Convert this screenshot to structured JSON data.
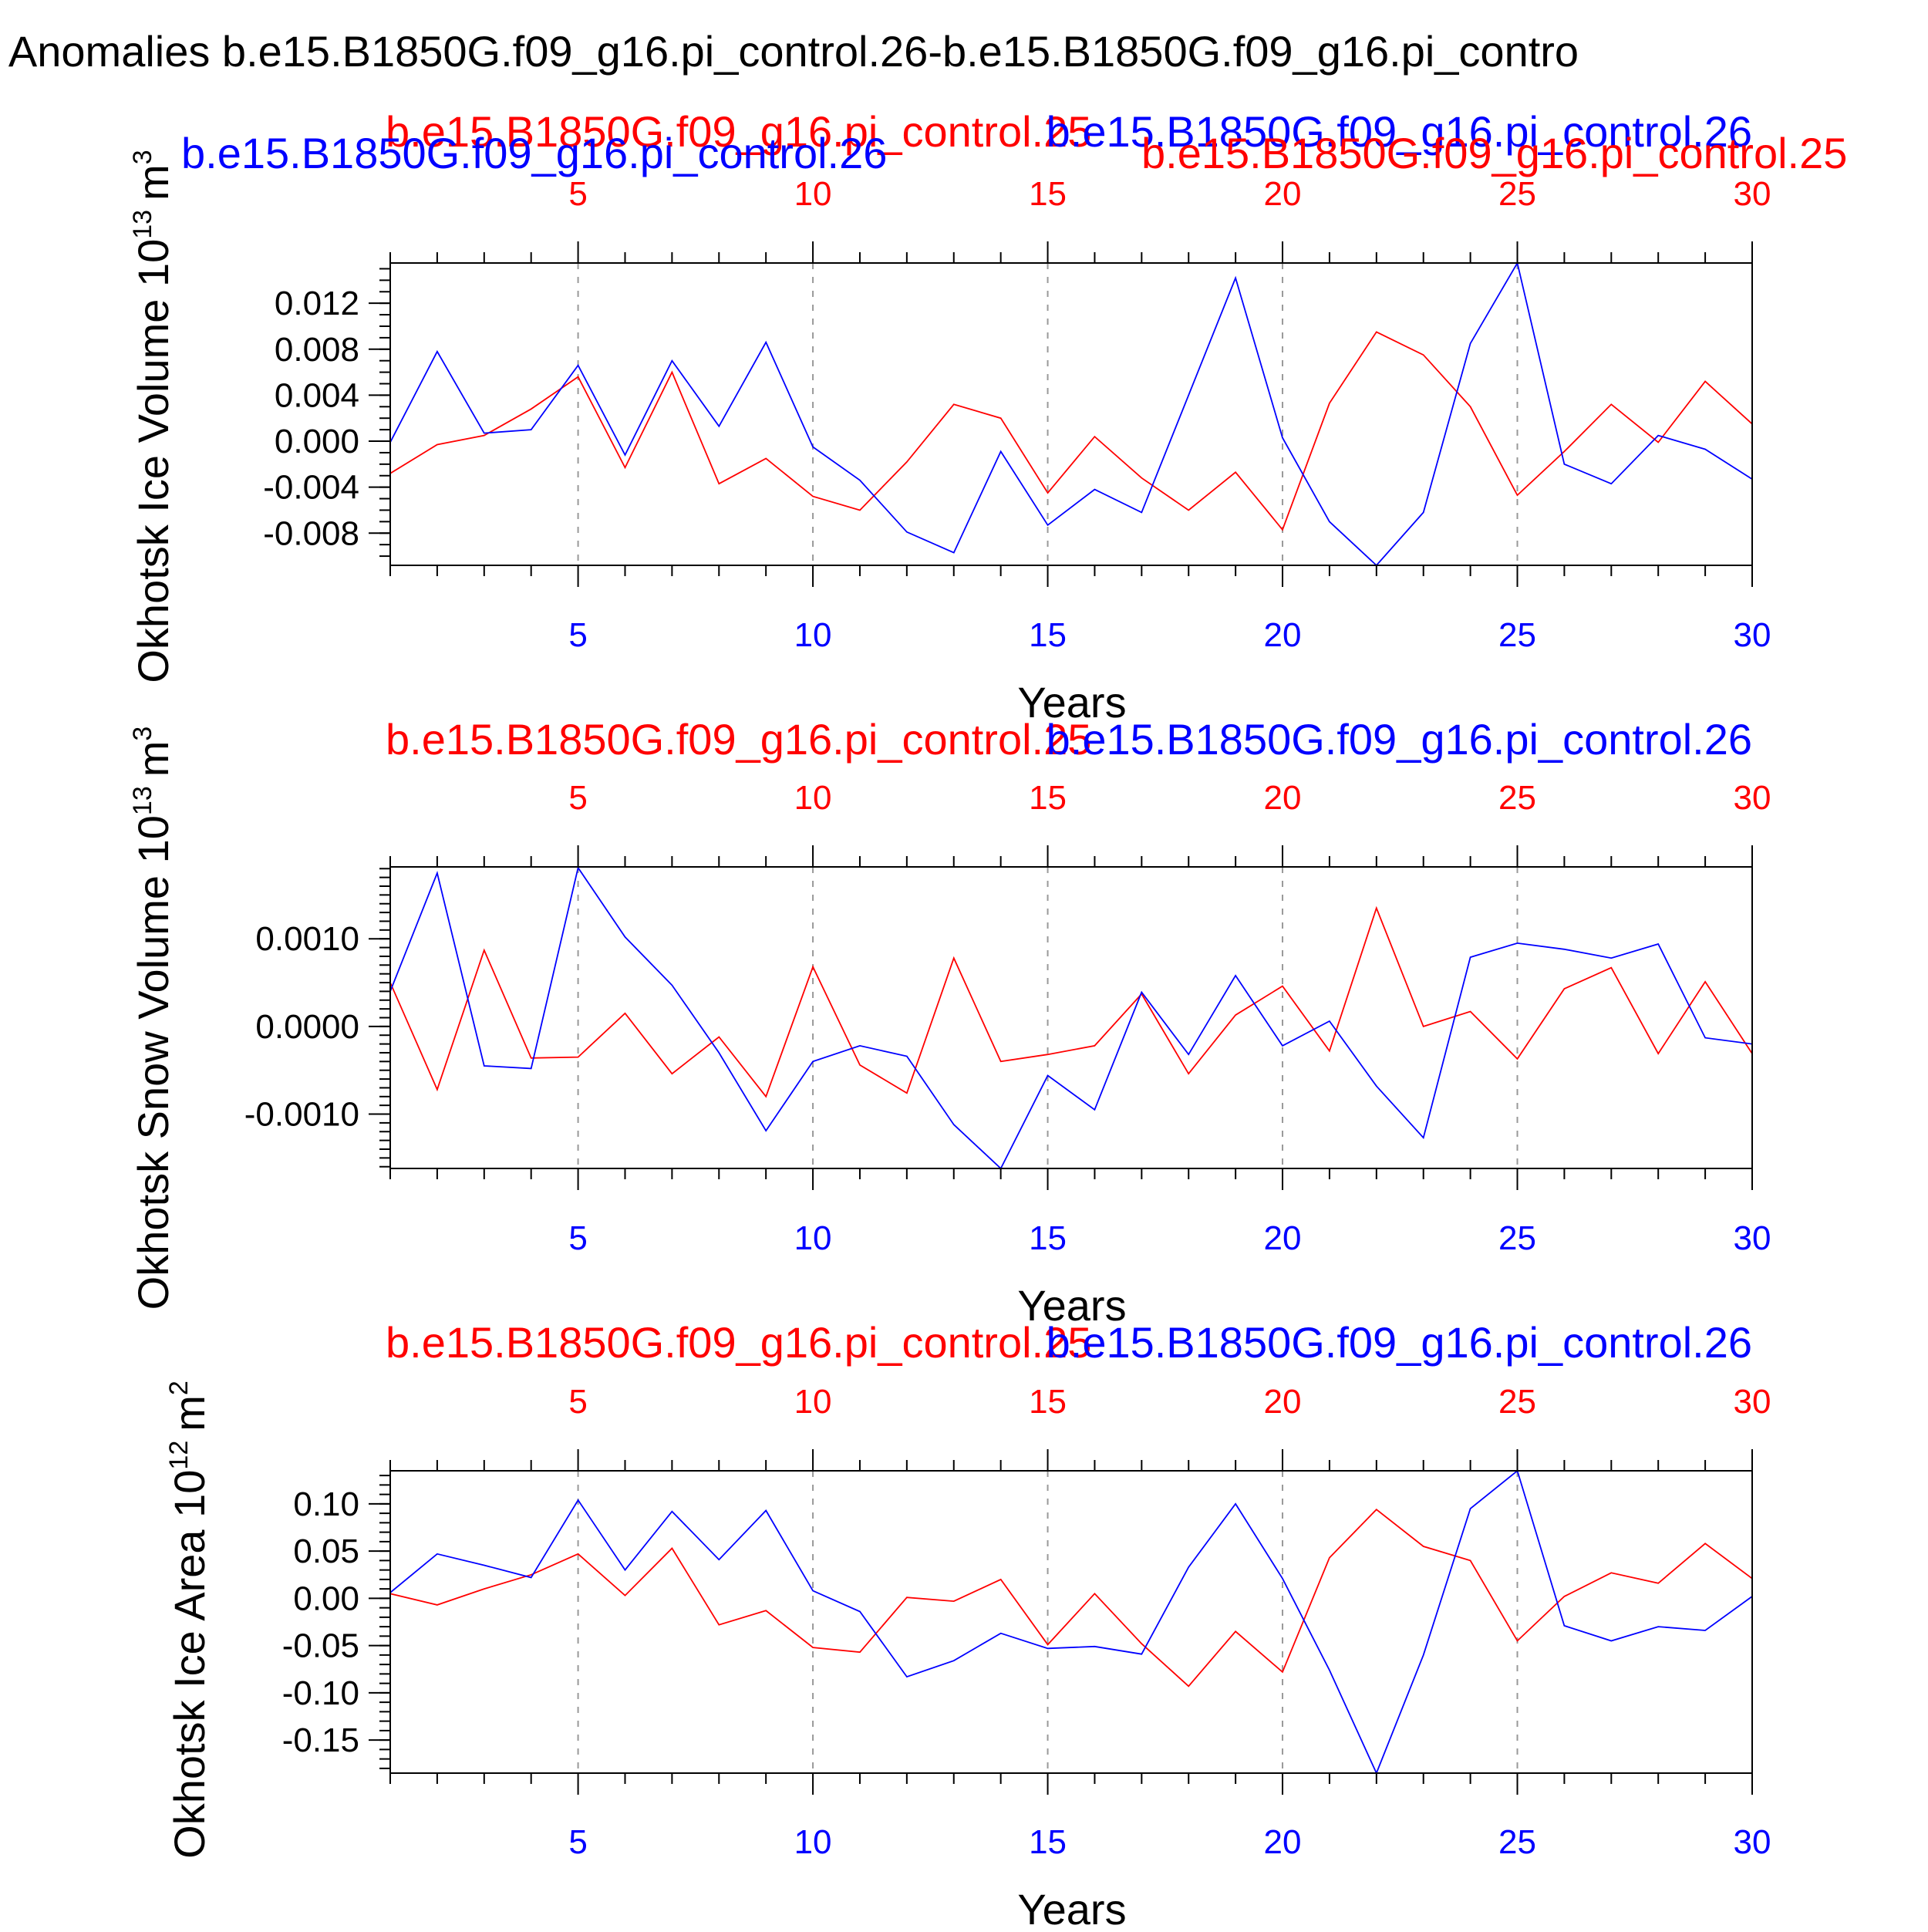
{
  "figure_title": "l Anomalies b.e15.B1850G.f09_g16.pi_control.26-b.e15.B1850G.f09_g16.pi_contro",
  "colors": {
    "red_series": "#ff0000",
    "blue_series": "#0000ff",
    "axis": "#000000",
    "grid": "#999999"
  },
  "chart_data": [
    {
      "type": "line",
      "ylabel": "Okhotsk Ice Volume",
      "yunit_base": "10",
      "yunit_exp": "13",
      "yunit_tail": "m",
      "yunit_tail_exp": "3",
      "xlabel": "Years",
      "xlim": [
        1,
        30
      ],
      "ylim": [
        -0.0108,
        0.0155
      ],
      "x_ticks": [
        5,
        10,
        15,
        20,
        25,
        30
      ],
      "x_tick_labels": [
        "5",
        "10",
        "15",
        "20",
        "25",
        "30"
      ],
      "y_ticks": [
        -0.008,
        -0.004,
        0.0,
        0.004,
        0.008,
        0.012
      ],
      "y_tick_labels": [
        "-0.008",
        "-0.004",
        "0.000",
        "0.004",
        "0.008",
        "0.012"
      ],
      "y_minor_step": 0.001,
      "top_labels": [
        "b.e15.B1850G.f09_g16.pi_control.25",
        "b.e15.B1850G.f09_g16.pi_control.26",
        "b.e15.B1850G.f09_g16.pi_control.26",
        "b.e15.B1850G.f09_g16.pi_control.25"
      ],
      "series": [
        {
          "name": "b.e15.B1850G.f09_g16.pi_control.25",
          "color": "#ff0000",
          "values": [
            -0.0028,
            -0.0003,
            0.0005,
            0.0028,
            0.0056,
            -0.0023,
            0.006,
            -0.0037,
            -0.0015,
            -0.0048,
            -0.006,
            -0.0018,
            0.0032,
            0.002,
            -0.0045,
            0.0004,
            -0.0032,
            -0.006,
            -0.0027,
            -0.0077,
            0.0033,
            0.0095,
            0.0075,
            0.003,
            -0.0047,
            -0.0009,
            0.0032,
            -0.0001,
            0.0052,
            0.0015
          ]
        },
        {
          "name": "b.e15.B1850G.f09_g16.pi_control.26",
          "color": "#0000ff",
          "values": [
            -0.0001,
            0.0078,
            0.0007,
            0.001,
            0.0066,
            -0.0012,
            0.007,
            0.0013,
            0.0086,
            -0.0005,
            -0.0034,
            -0.0079,
            -0.0097,
            -0.0009,
            -0.0073,
            -0.0042,
            -0.0062,
            0.004,
            0.0142,
            0.0003,
            -0.007,
            -0.0108,
            -0.0062,
            0.0085,
            0.0155,
            -0.002,
            -0.0037,
            0.0005,
            -0.0007,
            -0.0033
          ]
        }
      ]
    },
    {
      "type": "line",
      "ylabel": "Okhotsk Snow Volume",
      "yunit_base": "10",
      "yunit_exp": "13",
      "yunit_tail": "m",
      "yunit_tail_exp": "3",
      "xlabel": "Years",
      "xlim": [
        1,
        30
      ],
      "ylim": [
        -0.00162,
        0.00182
      ],
      "x_ticks": [
        5,
        10,
        15,
        20,
        25,
        30
      ],
      "x_tick_labels": [
        "5",
        "10",
        "15",
        "20",
        "25",
        "30"
      ],
      "y_ticks": [
        -0.001,
        0.0,
        0.001
      ],
      "y_tick_labels": [
        "-0.0010",
        "0.0000",
        "0.0010"
      ],
      "y_minor_step": 0.0001,
      "top_labels": [
        "b.e15.B1850G.f09_g16.pi_control.25",
        "b.e15.B1850G.f09_g16.pi_control.26"
      ],
      "series": [
        {
          "name": "b.e15.B1850G.f09_g16.pi_control.25",
          "color": "#ff0000",
          "values": [
            0.0005,
            -0.00072,
            0.00087,
            -0.00036,
            -0.00035,
            0.00015,
            -0.00054,
            -0.00012,
            -0.0008,
            0.00068,
            -0.00044,
            -0.00076,
            0.00078,
            -0.0004,
            -0.00032,
            -0.00022,
            0.00037,
            -0.00054,
            0.00013,
            0.00046,
            -0.00028,
            0.00135,
            0.0,
            0.00017,
            -0.00037,
            0.00043,
            0.00067,
            -0.00031,
            0.00051,
            -0.00031
          ]
        },
        {
          "name": "b.e15.B1850G.f09_g16.pi_control.26",
          "color": "#0000ff",
          "values": [
            0.0004,
            0.00175,
            -0.00045,
            -0.00048,
            0.00181,
            0.00102,
            0.00047,
            -0.0003,
            -0.00119,
            -0.0004,
            -0.00022,
            -0.00034,
            -0.00112,
            -0.00162,
            -0.00056,
            -0.00095,
            0.00039,
            -0.00032,
            0.00058,
            -0.00022,
            6e-05,
            -0.00068,
            -0.00127,
            0.00079,
            0.00095,
            0.00088,
            0.00078,
            0.00094,
            -0.00013,
            -0.0002
          ]
        }
      ]
    },
    {
      "type": "line",
      "ylabel": "Okhotsk Ice Area",
      "yunit_base": "10",
      "yunit_exp": "12",
      "yunit_tail": "m",
      "yunit_tail_exp": "2",
      "xlabel": "Years",
      "xlim": [
        1,
        30
      ],
      "ylim": [
        -0.185,
        0.135
      ],
      "x_ticks": [
        5,
        10,
        15,
        20,
        25,
        30
      ],
      "x_tick_labels": [
        "5",
        "10",
        "15",
        "20",
        "25",
        "30"
      ],
      "y_ticks": [
        -0.15,
        -0.1,
        -0.05,
        0.0,
        0.05,
        0.1
      ],
      "y_tick_labels": [
        "-0.15",
        "-0.10",
        "-0.05",
        "0.00",
        "0.05",
        "0.10"
      ],
      "y_minor_step": 0.01,
      "top_labels": [
        "b.e15.B1850G.f09_g16.pi_control.25",
        "b.e15.B1850G.f09_g16.pi_control.26"
      ],
      "series": [
        {
          "name": "b.e15.B1850G.f09_g16.pi_control.25",
          "color": "#ff0000",
          "values": [
            0.005,
            -0.007,
            0.01,
            0.025,
            0.047,
            0.003,
            0.053,
            -0.028,
            -0.013,
            -0.052,
            -0.057,
            0.001,
            -0.003,
            0.02,
            -0.049,
            0.005,
            -0.048,
            -0.093,
            -0.035,
            -0.078,
            0.043,
            0.094,
            0.055,
            0.04,
            -0.045,
            0.002,
            0.027,
            0.016,
            0.058,
            0.021
          ]
        },
        {
          "name": "b.e15.B1850G.f09_g16.pi_control.26",
          "color": "#0000ff",
          "values": [
            0.006,
            0.047,
            0.035,
            0.022,
            0.104,
            0.03,
            0.092,
            0.041,
            0.093,
            0.008,
            -0.014,
            -0.083,
            -0.066,
            -0.037,
            -0.053,
            -0.051,
            -0.059,
            0.033,
            0.1,
            0.021,
            -0.076,
            -0.185,
            -0.06,
            0.095,
            0.135,
            -0.029,
            -0.045,
            -0.03,
            -0.034,
            0.002
          ]
        }
      ]
    }
  ]
}
